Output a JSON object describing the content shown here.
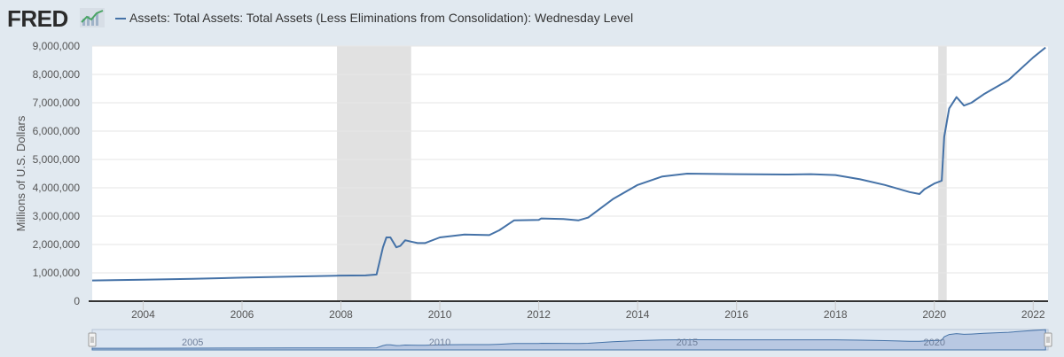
{
  "header": {
    "logo_text": "FRED",
    "logo_icon": "chart-line-icon",
    "series_title": "Assets: Total Assets: Total Assets (Less Eliminations from Consolidation): Wednesday Level"
  },
  "colors": {
    "series": "#4572a7",
    "recession": "#e1e1e1",
    "background": "#e1e9f0",
    "plot": "#ffffff",
    "navigator_fill": "#b8c8e2"
  },
  "chart_data": {
    "type": "line",
    "title": "Assets: Total Assets: Total Assets (Less Eliminations from Consolidation): Wednesday Level",
    "xlabel": "",
    "ylabel": "Millions of U.S. Dollars",
    "xlim": [
      2002.97,
      2022.3
    ],
    "ylim": [
      0,
      9000000
    ],
    "x_ticks": [
      2004,
      2006,
      2008,
      2010,
      2012,
      2014,
      2016,
      2018,
      2020,
      2022
    ],
    "y_ticks": [
      0,
      1000000,
      2000000,
      3000000,
      4000000,
      5000000,
      6000000,
      7000000,
      8000000,
      9000000
    ],
    "y_tick_labels": [
      "0",
      "1,000,000",
      "2,000,000",
      "3,000,000",
      "4,000,000",
      "5,000,000",
      "6,000,000",
      "7,000,000",
      "8,000,000",
      "9,000,000"
    ],
    "grid": true,
    "recessions": [
      [
        2007.92,
        2009.42
      ],
      [
        2020.08,
        2020.25
      ]
    ],
    "navigator_labels": [
      "2005",
      "2010",
      "2015",
      "2020"
    ],
    "series": [
      {
        "name": "Assets: Total Assets: Total Assets (Less Eliminations from Consolidation): Wednesday Level",
        "x": [
          2002.97,
          2004.0,
          2005.0,
          2006.0,
          2007.0,
          2007.9,
          2008.5,
          2008.72,
          2008.85,
          2008.92,
          2009.0,
          2009.12,
          2009.2,
          2009.3,
          2009.42,
          2009.55,
          2009.7,
          2010.0,
          2010.5,
          2011.0,
          2011.2,
          2011.5,
          2012.0,
          2012.05,
          2012.5,
          2012.8,
          2013.0,
          2013.5,
          2014.0,
          2014.5,
          2015.0,
          2016.0,
          2017.0,
          2017.5,
          2018.0,
          2018.5,
          2019.0,
          2019.5,
          2019.7,
          2019.8,
          2020.0,
          2020.15,
          2020.2,
          2020.3,
          2020.45,
          2020.6,
          2020.75,
          2021.0,
          2021.5,
          2022.0,
          2022.25
        ],
        "y": [
          730000,
          760000,
          790000,
          830000,
          870000,
          900000,
          910000,
          940000,
          1900000,
          2250000,
          2250000,
          1900000,
          1950000,
          2150000,
          2100000,
          2050000,
          2050000,
          2250000,
          2350000,
          2330000,
          2500000,
          2850000,
          2870000,
          2920000,
          2900000,
          2850000,
          2950000,
          3600000,
          4100000,
          4400000,
          4500000,
          4480000,
          4470000,
          4480000,
          4450000,
          4300000,
          4100000,
          3850000,
          3780000,
          3950000,
          4150000,
          4250000,
          5800000,
          6800000,
          7200000,
          6900000,
          7000000,
          7300000,
          7800000,
          8600000,
          8950000
        ]
      }
    ]
  }
}
